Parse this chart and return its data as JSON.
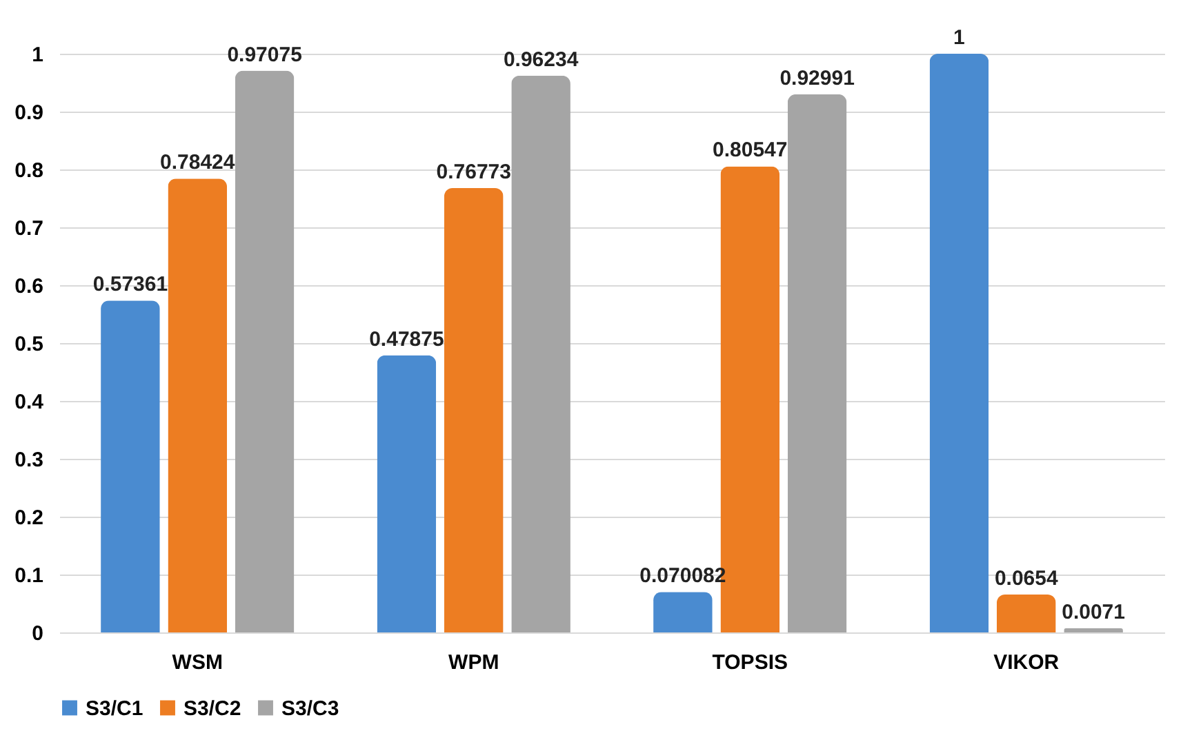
{
  "chart_data": {
    "type": "bar",
    "categories": [
      "WSM",
      "WPM",
      "TOPSIS",
      "VIKOR"
    ],
    "series": [
      {
        "name": "S3/C1",
        "color": "#4a8bd0",
        "values": [
          0.57361,
          0.47875,
          0.070082,
          1
        ]
      },
      {
        "name": "S3/C2",
        "color": "#ed7d22",
        "values": [
          0.78424,
          0.76773,
          0.80547,
          0.0654
        ]
      },
      {
        "name": "S3/C3",
        "color": "#a5a5a5",
        "values": [
          0.97075,
          0.96234,
          0.92991,
          0.0071
        ]
      }
    ],
    "ylim": [
      0,
      1
    ],
    "yticks": [
      0,
      0.1,
      0.2,
      0.3,
      0.4,
      0.5,
      0.6,
      0.7,
      0.8,
      0.9,
      1
    ],
    "grid": "y",
    "legend": "bottom",
    "data_labels": true
  }
}
